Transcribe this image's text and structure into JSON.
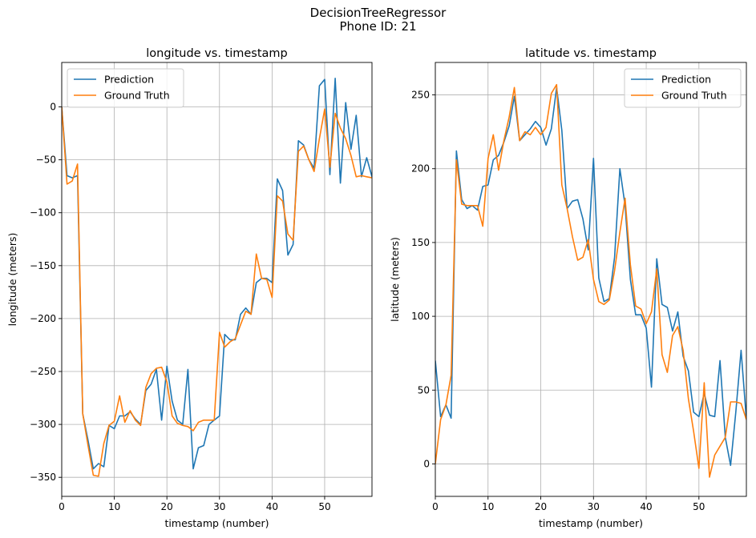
{
  "figure": {
    "title_line1": "DecisionTreeRegressor",
    "title_line2": "Phone ID: 21"
  },
  "colors": {
    "prediction": "#1f77b4",
    "ground_truth": "#ff7f0e",
    "grid": "#b0b0b0"
  },
  "chart_data": [
    {
      "type": "line",
      "title": "longitude vs. timestamp",
      "xlabel": "timestamp (number)",
      "ylabel": "longitude (meters)",
      "xlim": [
        0,
        59
      ],
      "ylim": [
        -368,
        42
      ],
      "xticks": [
        0,
        10,
        20,
        30,
        40,
        50
      ],
      "yticks": [
        0,
        -50,
        -100,
        -150,
        -200,
        -250,
        -300,
        -350
      ],
      "ytick_labels": [
        "0",
        "−50",
        "−100",
        "−150",
        "−200",
        "−250",
        "−300",
        "−350"
      ],
      "grid": true,
      "legend_position": "top-left",
      "x": [
        0,
        1,
        2,
        3,
        4,
        5,
        6,
        7,
        8,
        9,
        10,
        11,
        12,
        13,
        14,
        15,
        16,
        17,
        18,
        19,
        20,
        21,
        22,
        23,
        24,
        25,
        26,
        27,
        28,
        29,
        30,
        31,
        32,
        33,
        34,
        35,
        36,
        37,
        38,
        39,
        40,
        41,
        42,
        43,
        44,
        45,
        46,
        47,
        48,
        49,
        50,
        51,
        52,
        53,
        54,
        55,
        56,
        57,
        58,
        59
      ],
      "series": [
        {
          "name": "Prediction",
          "color": "#1f77b4",
          "values": [
            0,
            -65,
            -67,
            -65,
            -290,
            -315,
            -342,
            -337,
            -340,
            -301,
            -304,
            -292,
            -292,
            -288,
            -295,
            -300,
            -268,
            -262,
            -248,
            -296,
            -245,
            -278,
            -296,
            -300,
            -248,
            -342,
            -322,
            -320,
            -300,
            -296,
            -292,
            -215,
            -220,
            -220,
            -196,
            -190,
            -196,
            -166,
            -162,
            -162,
            -166,
            -68,
            -79,
            -140,
            -130,
            -32,
            -36,
            -50,
            -58,
            20,
            26,
            -64,
            27,
            -72,
            4,
            -40,
            -8,
            -66,
            -48,
            -66
          ]
        },
        {
          "name": "Ground Truth",
          "color": "#ff7f0e",
          "values": [
            0,
            -73,
            -70,
            -54,
            -290,
            -320,
            -348,
            -349,
            -318,
            -301,
            -297,
            -273,
            -298,
            -287,
            -296,
            -301,
            -265,
            -252,
            -247,
            -246,
            -260,
            -292,
            -299,
            -301,
            -302,
            -306,
            -298,
            -296,
            -296,
            -296,
            -213,
            -227,
            -222,
            -219,
            -206,
            -193,
            -196,
            -139,
            -162,
            -163,
            -180,
            -84,
            -89,
            -120,
            -126,
            -42,
            -37,
            -50,
            -61,
            -30,
            -2,
            -57,
            -6,
            -20,
            -30,
            -46,
            -66,
            -65,
            -66,
            -67
          ]
        }
      ]
    },
    {
      "type": "line",
      "title": "latitude vs. timestamp",
      "xlabel": "timestamp (number)",
      "ylabel": "latitude (meters)",
      "xlim": [
        0,
        59
      ],
      "ylim": [
        -22,
        272
      ],
      "xticks": [
        0,
        10,
        20,
        30,
        40,
        50
      ],
      "yticks": [
        0,
        50,
        100,
        150,
        200,
        250
      ],
      "ytick_labels": [
        "0",
        "50",
        "100",
        "150",
        "200",
        "250"
      ],
      "grid": true,
      "legend_position": "top-right",
      "x": [
        0,
        1,
        2,
        3,
        4,
        5,
        6,
        7,
        8,
        9,
        10,
        11,
        12,
        13,
        14,
        15,
        16,
        17,
        18,
        19,
        20,
        21,
        22,
        23,
        24,
        25,
        26,
        27,
        28,
        29,
        30,
        31,
        32,
        33,
        34,
        35,
        36,
        37,
        38,
        39,
        40,
        41,
        42,
        43,
        44,
        45,
        46,
        47,
        48,
        49,
        50,
        51,
        52,
        53,
        54,
        55,
        56,
        57,
        58,
        59
      ],
      "series": [
        {
          "name": "Prediction",
          "color": "#1f77b4",
          "values": [
            70,
            32,
            40,
            31,
            212,
            179,
            173,
            175,
            172,
            188,
            189,
            206,
            209,
            218,
            229,
            249,
            219,
            223,
            227,
            232,
            228,
            216,
            227,
            255,
            226,
            173,
            178,
            179,
            166,
            145,
            207,
            126,
            110,
            112,
            140,
            200,
            175,
            125,
            101,
            101,
            92,
            52,
            139,
            108,
            106,
            90,
            103,
            73,
            63,
            35,
            32,
            48,
            33,
            32,
            70,
            18,
            -1,
            35,
            77,
            30
          ]
        },
        {
          "name": "Ground Truth",
          "color": "#ff7f0e",
          "values": [
            0,
            30,
            40,
            60,
            206,
            176,
            175,
            175,
            175,
            161,
            207,
            223,
            199,
            219,
            235,
            255,
            219,
            225,
            223,
            228,
            223,
            228,
            251,
            257,
            189,
            173,
            154,
            138,
            140,
            152,
            125,
            110,
            108,
            111,
            131,
            157,
            180,
            135,
            107,
            105,
            95,
            103,
            132,
            74,
            62,
            87,
            93,
            77,
            44,
            22,
            -3,
            55,
            -9,
            6,
            12,
            18,
            42,
            42,
            41,
            30
          ]
        }
      ]
    }
  ]
}
